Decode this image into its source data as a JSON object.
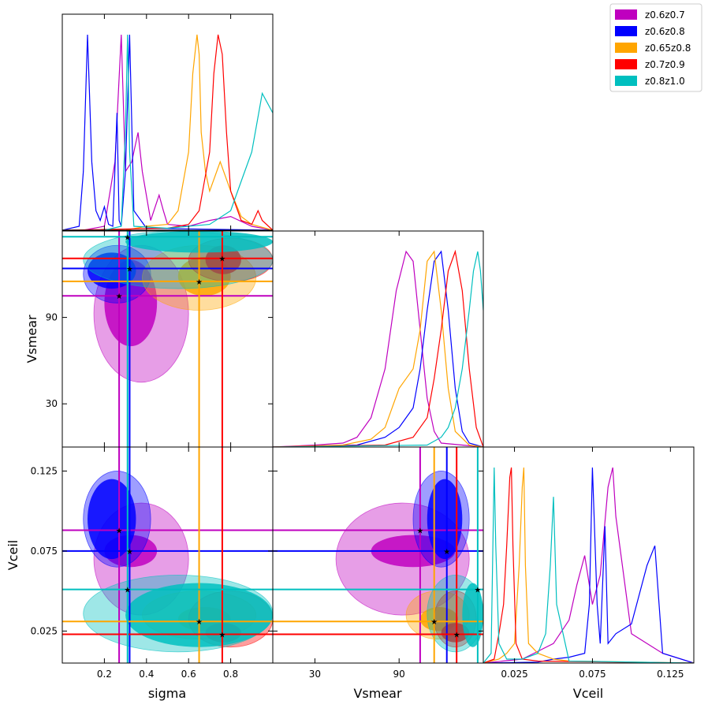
{
  "legend": {
    "placement": "top-right",
    "entries": [
      {
        "label": "z0.6z0.7",
        "color": "#bf00bf"
      },
      {
        "label": "z0.6z0.8",
        "color": "#0000ff"
      },
      {
        "label": "z0.65z0.8",
        "color": "#ffa500"
      },
      {
        "label": "z0.7z0.9",
        "color": "#ff0000"
      },
      {
        "label": "z0.8z1.0",
        "color": "#00bfbf"
      }
    ]
  },
  "chart_data": {
    "type": "scatter",
    "title": "",
    "parameters": [
      "sigma",
      "Vsmear",
      "Vceil"
    ],
    "axes": {
      "sigma": {
        "label": "sigma",
        "range": [
          0.0,
          1.0
        ],
        "ticks": [
          0.2,
          0.4,
          0.6,
          0.8
        ],
        "tick_labels": [
          "0.2",
          "0.4",
          "0.6",
          "0.8"
        ]
      },
      "Vsmear": {
        "label": "Vsmear",
        "range": [
          0,
          150
        ],
        "ticks": [
          30,
          90
        ],
        "tick_labels": [
          "30",
          "90"
        ]
      },
      "Vceil": {
        "label": "Vceil",
        "range": [
          0.005,
          0.14
        ],
        "ticks": [
          0.025,
          0.075,
          0.125
        ],
        "tick_labels": [
          "0.025",
          "0.075",
          "0.125"
        ]
      }
    },
    "grid": false,
    "series": [
      {
        "name": "z0.6z0.7",
        "color": "#bf00bf",
        "best_fit": {
          "sigma": 0.27,
          "Vsmear": 105,
          "Vceil": 0.088
        },
        "contour_outer": {
          "sigma": [
            0.15,
            0.6
          ],
          "Vsmear": [
            45,
            140
          ],
          "Vceil": [
            0.035,
            0.105
          ]
        },
        "contour_inner": {
          "sigma": [
            0.2,
            0.45
          ],
          "Vsmear": [
            70,
            130
          ],
          "Vceil": [
            0.065,
            0.085
          ]
        },
        "marginals": {
          "sigma": {
            "x": [
              0.0,
              0.1,
              0.2,
              0.25,
              0.28,
              0.3,
              0.33,
              0.36,
              0.38,
              0.42,
              0.46,
              0.48,
              0.5,
              0.6,
              0.7,
              0.8,
              0.9,
              1.0
            ],
            "y": [
              0,
              0,
              0.02,
              0.35,
              1.0,
              0.3,
              0.35,
              0.5,
              0.3,
              0.05,
              0.18,
              0.1,
              0.03,
              0.02,
              0.05,
              0.07,
              0.02,
              0
            ]
          },
          "Vsmear": {
            "x": [
              0,
              30,
              50,
              60,
              70,
              80,
              88,
              95,
              100,
              105,
              110,
              115,
              120,
              150
            ],
            "y": [
              0,
              0.01,
              0.02,
              0.05,
              0.15,
              0.4,
              0.8,
              1.0,
              0.95,
              0.6,
              0.25,
              0.08,
              0.02,
              0
            ]
          },
          "Vceil": {
            "x": [
              0.005,
              0.03,
              0.04,
              0.05,
              0.06,
              0.065,
              0.07,
              0.075,
              0.08,
              0.085,
              0.088,
              0.09,
              0.1,
              0.11,
              0.12,
              0.14
            ],
            "y": [
              0,
              0.02,
              0.06,
              0.1,
              0.22,
              0.4,
              0.55,
              0.3,
              0.45,
              0.9,
              1.0,
              0.75,
              0.15,
              0.1,
              0.05,
              0.0
            ]
          }
        }
      },
      {
        "name": "z0.6z0.8",
        "color": "#0000ff",
        "best_fit": {
          "sigma": 0.32,
          "Vsmear": 124,
          "Vceil": 0.075
        },
        "contour_outer": {
          "sigma": [
            0.1,
            0.42
          ],
          "Vsmear": [
            100,
            140
          ],
          "Vceil": [
            0.065,
            0.125
          ]
        },
        "contour_inner": {
          "sigma": [
            0.12,
            0.35
          ],
          "Vsmear": [
            110,
            135
          ],
          "Vceil": [
            0.07,
            0.12
          ]
        },
        "marginals": {
          "sigma": {
            "x": [
              0.0,
              0.08,
              0.1,
              0.12,
              0.14,
              0.16,
              0.18,
              0.2,
              0.22,
              0.24,
              0.26,
              0.27,
              0.28,
              0.3,
              0.32,
              0.34,
              0.4,
              1.0
            ],
            "y": [
              0,
              0.02,
              0.3,
              1.0,
              0.35,
              0.1,
              0.05,
              0.12,
              0.03,
              0.02,
              0.6,
              0.05,
              0.02,
              0.3,
              1.0,
              0.1,
              0.01,
              0
            ]
          },
          "Vsmear": {
            "x": [
              0,
              60,
              80,
              90,
              100,
              105,
              110,
              115,
              120,
              125,
              130,
              135,
              140,
              150
            ],
            "y": [
              0,
              0.01,
              0.05,
              0.1,
              0.2,
              0.4,
              0.7,
              0.95,
              1.0,
              0.7,
              0.3,
              0.08,
              0.02,
              0
            ]
          },
          "Vceil": {
            "x": [
              0.005,
              0.04,
              0.05,
              0.06,
              0.07,
              0.073,
              0.075,
              0.078,
              0.08,
              0.083,
              0.085,
              0.09,
              0.1,
              0.11,
              0.115,
              0.12,
              0.14
            ],
            "y": [
              0,
              0.005,
              0.02,
              0.03,
              0.05,
              0.3,
              1.0,
              0.3,
              0.1,
              0.7,
              0.1,
              0.15,
              0.2,
              0.5,
              0.6,
              0.05,
              0
            ]
          }
        }
      },
      {
        "name": "z0.65z0.8",
        "color": "#ffa500",
        "best_fit": {
          "sigma": 0.65,
          "Vsmear": 115,
          "Vceil": 0.031
        },
        "contour_outer": {
          "sigma": [
            0.38,
            0.92
          ],
          "Vsmear": [
            95,
            140
          ],
          "Vceil": [
            0.02,
            0.05
          ]
        },
        "contour_inner": {
          "sigma": [
            0.55,
            0.8
          ],
          "Vsmear": [
            105,
            132
          ],
          "Vceil": [
            0.025,
            0.04
          ]
        },
        "marginals": {
          "sigma": {
            "x": [
              0.0,
              0.3,
              0.4,
              0.5,
              0.55,
              0.6,
              0.62,
              0.64,
              0.65,
              0.66,
              0.68,
              0.7,
              0.75,
              0.8,
              0.85,
              0.9,
              1.0
            ],
            "y": [
              0,
              0,
              0.02,
              0.03,
              0.1,
              0.4,
              0.8,
              1.0,
              0.9,
              0.5,
              0.3,
              0.2,
              0.35,
              0.2,
              0.07,
              0.03,
              0
            ]
          },
          "Vsmear": {
            "x": [
              0,
              50,
              70,
              80,
              90,
              100,
              105,
              110,
              115,
              120,
              125,
              130,
              140,
              150
            ],
            "y": [
              0,
              0.01,
              0.04,
              0.1,
              0.3,
              0.4,
              0.6,
              0.95,
              1.0,
              0.7,
              0.3,
              0.08,
              0.01,
              0
            ]
          },
          "Vceil": {
            "x": [
              0.005,
              0.015,
              0.02,
              0.025,
              0.028,
              0.03,
              0.031,
              0.032,
              0.034,
              0.04,
              0.05,
              0.06,
              0.14
            ],
            "y": [
              0,
              0.02,
              0.05,
              0.1,
              0.5,
              0.9,
              1.0,
              0.5,
              0.1,
              0.05,
              0.02,
              0.01,
              0
            ]
          }
        }
      },
      {
        "name": "z0.7z0.9",
        "color": "#ff0000",
        "best_fit": {
          "sigma": 0.76,
          "Vsmear": 131,
          "Vceil": 0.023
        },
        "contour_outer": {
          "sigma": [
            0.6,
            1.0
          ],
          "Vsmear": [
            115,
            145
          ],
          "Vceil": [
            0.015,
            0.05
          ]
        },
        "contour_inner": {
          "sigma": [
            0.68,
            0.85
          ],
          "Vsmear": [
            120,
            140
          ],
          "Vceil": [
            0.018,
            0.03
          ]
        },
        "marginals": {
          "sigma": {
            "x": [
              0.0,
              0.5,
              0.6,
              0.65,
              0.7,
              0.72,
              0.74,
              0.76,
              0.78,
              0.8,
              0.85,
              0.9,
              0.93,
              0.95,
              1.0
            ],
            "y": [
              0,
              0.01,
              0.03,
              0.1,
              0.4,
              0.8,
              1.0,
              0.9,
              0.5,
              0.2,
              0.05,
              0.03,
              0.1,
              0.05,
              0
            ]
          },
          "Vsmear": {
            "x": [
              0,
              80,
              100,
              110,
              115,
              120,
              125,
              130,
              135,
              140,
              145,
              150
            ],
            "y": [
              0,
              0.01,
              0.05,
              0.15,
              0.35,
              0.6,
              0.9,
              1.0,
              0.8,
              0.4,
              0.1,
              0
            ]
          },
          "Vceil": {
            "x": [
              0.005,
              0.012,
              0.015,
              0.018,
              0.02,
              0.022,
              0.023,
              0.024,
              0.026,
              0.03,
              0.04,
              0.14
            ],
            "y": [
              0,
              0.02,
              0.15,
              0.3,
              0.6,
              0.95,
              1.0,
              0.6,
              0.1,
              0.02,
              0.01,
              0
            ]
          }
        }
      },
      {
        "name": "z0.8z1.0",
        "color": "#00bfbf",
        "best_fit": {
          "sigma": 0.31,
          "Vsmear": 146,
          "Vceil": 0.051
        },
        "contour_outer": {
          "sigma": [
            0.1,
            1.0
          ],
          "Vsmear": [
            110,
            150
          ],
          "Vceil": [
            0.012,
            0.06
          ]
        },
        "contour_inner": {
          "sigma": [
            0.3,
            1.0
          ],
          "Vsmear": [
            135,
            150
          ],
          "Vceil": [
            0.015,
            0.055
          ]
        },
        "marginals": {
          "sigma": {
            "x": [
              0.0,
              0.2,
              0.28,
              0.3,
              0.31,
              0.32,
              0.34,
              0.5,
              0.6,
              0.7,
              0.8,
              0.85,
              0.9,
              0.95,
              1.0
            ],
            "y": [
              0,
              0,
              0.02,
              0.5,
              1.0,
              0.4,
              0.02,
              0.01,
              0.02,
              0.03,
              0.1,
              0.25,
              0.4,
              0.7,
              0.6
            ]
          },
          "Vsmear": {
            "x": [
              0,
              110,
              120,
              125,
              130,
              135,
              140,
              143,
              146,
              148,
              150
            ],
            "y": [
              0,
              0.01,
              0.05,
              0.1,
              0.2,
              0.4,
              0.7,
              0.9,
              1.0,
              0.9,
              0.7
            ]
          },
          "Vceil": {
            "x": [
              0.005,
              0.01,
              0.012,
              0.013,
              0.015,
              0.02,
              0.03,
              0.04,
              0.045,
              0.048,
              0.05,
              0.052,
              0.06,
              0.14
            ],
            "y": [
              0,
              0.05,
              1.0,
              0.6,
              0.1,
              0.02,
              0.02,
              0.05,
              0.15,
              0.5,
              0.85,
              0.3,
              0.01,
              0
            ]
          }
        }
      }
    ]
  }
}
